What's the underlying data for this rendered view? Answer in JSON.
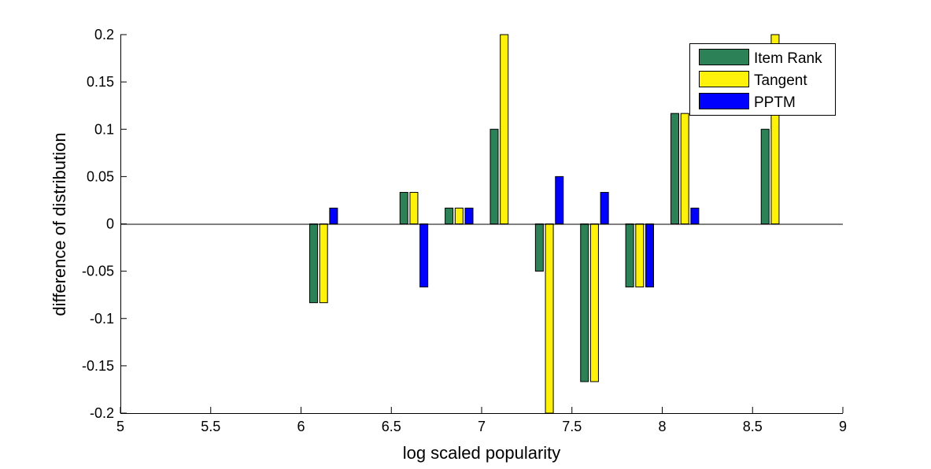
{
  "chart_data": {
    "type": "bar",
    "title": "",
    "xlabel": "log scaled popularity",
    "ylabel": "difference of distribution",
    "xlim": [
      5,
      9
    ],
    "ylim": [
      -0.2,
      0.2
    ],
    "xticks": [
      "5",
      "5.5",
      "6",
      "6.5",
      "7",
      "7.5",
      "8",
      "8.5",
      "9"
    ],
    "yticks": [
      "-0.2",
      "-0.15",
      "-0.1",
      "-0.05",
      "0",
      "0.05",
      "0.1",
      "0.15",
      "0.2"
    ],
    "x": [
      6.125,
      6.375,
      6.625,
      6.875,
      7.125,
      7.375,
      7.625,
      7.875,
      8.125,
      8.375,
      8.625
    ],
    "series": [
      {
        "name": "Item Rank",
        "color": "#2c8157",
        "values": [
          -0.0833,
          0,
          0.0333,
          0.0167,
          0.1,
          -0.05,
          -0.1667,
          -0.0667,
          0.1167,
          0,
          0.1
        ]
      },
      {
        "name": "Tangent",
        "color": "#fff20a",
        "values": [
          -0.0833,
          0,
          0.0333,
          0.0167,
          0.2,
          -0.2,
          -0.1667,
          -0.0667,
          0.1167,
          0,
          0.2
        ]
      },
      {
        "name": "PPTM",
        "color": "#0000ff",
        "values": [
          0.0167,
          0,
          -0.0667,
          0.0167,
          0,
          0.05,
          0.0333,
          -0.0667,
          0.0167,
          0,
          0
        ]
      }
    ],
    "legend": {
      "placement": "top-right"
    },
    "grid": false
  }
}
